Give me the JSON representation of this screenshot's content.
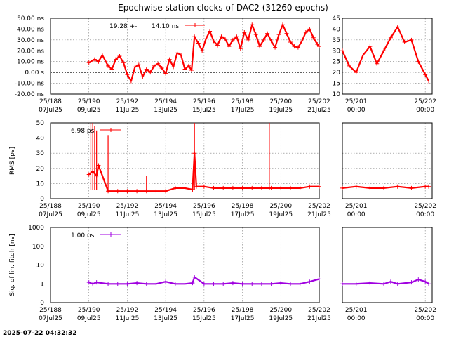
{
  "title": "Epochwise station clocks of DAC2 (31260 epochs)",
  "timestamp": "2025-07-22 04:32:32",
  "colors": {
    "clock": "#ff0000",
    "rms": "#ff0000",
    "sig": "#a000e0",
    "frame": "#000000",
    "grid": "#7f7f7f"
  },
  "chart_data": [
    {
      "type": "line",
      "id": "clock",
      "ylabel": "",
      "legend": {
        "mean": "19.28 +-",
        "sigma": "14.10 ns"
      },
      "left": {
        "x_ticks": [
          {
            "top": "25/188",
            "bottom": "07Jul25"
          },
          {
            "top": "25/190",
            "bottom": "09Jul25"
          },
          {
            "top": "25/192",
            "bottom": "11Jul25"
          },
          {
            "top": "25/194",
            "bottom": "13Jul25"
          },
          {
            "top": "25/196",
            "bottom": "15Jul25"
          },
          {
            "top": "25/198",
            "bottom": "17Jul25"
          },
          {
            "top": "25/200",
            "bottom": "19Jul25"
          },
          {
            "top": "25/202",
            "bottom": "21Jul25"
          }
        ],
        "xlim": [
          188,
          202
        ],
        "ylim": [
          -20,
          50
        ],
        "y_ticks": [
          "50.00 ns",
          "40.00 ns",
          "30.00 ns",
          "20.00 ns",
          "10.00 ns",
          "0.00  s",
          "-10.00 ns",
          "-20.00 ns"
        ],
        "y_tick_values": [
          50,
          40,
          30,
          20,
          10,
          0,
          -10,
          -20
        ],
        "series": [
          {
            "x": [
              190.0,
              190.3,
              190.5,
              190.7,
              191.0,
              191.2,
              191.4,
              191.6,
              191.8,
              192.0,
              192.2,
              192.4,
              192.6,
              192.8,
              193.0,
              193.2,
              193.4,
              193.6,
              193.8,
              194.0,
              194.2,
              194.4,
              194.6,
              194.8,
              195.0,
              195.2,
              195.35,
              195.5,
              195.7,
              195.9,
              196.1,
              196.3,
              196.5,
              196.7,
              196.9,
              197.1,
              197.3,
              197.5,
              197.7,
              197.9,
              198.1,
              198.3,
              198.5,
              198.7,
              198.9,
              199.1,
              199.3,
              199.5,
              199.7,
              199.9,
              200.1,
              200.3,
              200.5,
              200.7,
              200.9,
              201.1,
              201.3,
              201.5,
              201.7,
              201.9,
              202.0
            ],
            "y": [
              9,
              12,
              10,
              16,
              6,
              3,
              12,
              15,
              9,
              -2,
              -8,
              5,
              7,
              -4,
              3,
              0,
              6,
              8,
              4,
              -1,
              12,
              5,
              18,
              16,
              3,
              6,
              2,
              33,
              27,
              20,
              31,
              38,
              29,
              25,
              33,
              31,
              24,
              30,
              33,
              22,
              37,
              30,
              44,
              35,
              24,
              30,
              36,
              29,
              23,
              35,
              44,
              36,
              28,
              24,
              23,
              29,
              37,
              40,
              32,
              26,
              24
            ]
          }
        ]
      },
      "right": {
        "x_ticks": [
          {
            "top": "25/201",
            "bottom": "00:00"
          },
          {
            "top": "25/202",
            "bottom": "00:00"
          }
        ],
        "xlim": [
          200.8,
          202.1
        ],
        "ylim": [
          10,
          45
        ],
        "y_ticks": [
          "45",
          "40",
          "35",
          "30",
          "25",
          "20",
          "15",
          "10"
        ],
        "y_tick_values": [
          45,
          40,
          35,
          30,
          25,
          20,
          15,
          10
        ],
        "series": [
          {
            "x": [
              200.8,
              200.9,
              201.0,
              201.1,
              201.2,
              201.3,
              201.4,
              201.5,
              201.6,
              201.7,
              201.8,
              201.9,
              202.0,
              202.05
            ],
            "y": [
              30,
              23,
              20,
              28,
              32,
              24,
              30,
              36,
              41,
              34,
              35,
              25,
              19,
              16
            ]
          }
        ]
      }
    },
    {
      "type": "line",
      "id": "rms",
      "ylabel": "RMS [ps]",
      "legend": {
        "value": "6.98 ps"
      },
      "left": {
        "x_ticks": [
          {
            "top": "25/188",
            "bottom": "07Jul25"
          },
          {
            "top": "25/190",
            "bottom": "09Jul25"
          },
          {
            "top": "25/192",
            "bottom": "11Jul25"
          },
          {
            "top": "25/194",
            "bottom": "13Jul25"
          },
          {
            "top": "25/196",
            "bottom": "15Jul25"
          },
          {
            "top": "25/198",
            "bottom": "17Jul25"
          },
          {
            "top": "25/200",
            "bottom": "19Jul25"
          },
          {
            "top": "25/202",
            "bottom": "21Jul25"
          }
        ],
        "xlim": [
          188,
          202
        ],
        "ylim": [
          0,
          50
        ],
        "y_ticks": [
          "50",
          "40",
          "30",
          "20",
          "10",
          "0"
        ],
        "y_tick_values": [
          50,
          40,
          30,
          20,
          10,
          0
        ],
        "series": [
          {
            "x": [
              190.0,
              190.2,
              190.4,
              190.5,
              191.0,
              191.5,
              192.0,
              192.5,
              193.0,
              193.5,
              194.0,
              194.5,
              195.0,
              195.4,
              195.5,
              195.6,
              196.0,
              196.5,
              197.0,
              197.5,
              198.0,
              198.5,
              199.0,
              199.5,
              200.0,
              200.5,
              201.0,
              201.5,
              202.0
            ],
            "y": [
              16,
              18,
              15,
              22,
              5,
              5,
              5,
              5,
              5,
              5,
              5,
              7,
              7,
              6,
              30,
              8,
              8,
              7,
              7,
              7,
              7,
              7,
              7,
              7,
              7,
              7,
              7,
              8,
              8
            ]
          }
        ],
        "spikes": [
          {
            "x": 190.1,
            "y": 50
          },
          {
            "x": 190.2,
            "y": 50
          },
          {
            "x": 190.3,
            "y": 48
          },
          {
            "x": 190.4,
            "y": 45
          },
          {
            "x": 191.0,
            "y": 42
          },
          {
            "x": 193.0,
            "y": 15
          },
          {
            "x": 195.5,
            "y": 50
          },
          {
            "x": 199.4,
            "y": 50
          }
        ]
      },
      "right": {
        "x_ticks": [
          {
            "top": "25/201",
            "bottom": "00:00"
          },
          {
            "top": "25/202",
            "bottom": "00:00"
          }
        ],
        "xlim": [
          200.8,
          202.1
        ],
        "ylim": [
          0,
          50
        ],
        "series": [
          {
            "x": [
              200.8,
              201.0,
              201.2,
              201.4,
              201.6,
              201.8,
              202.0,
              202.05
            ],
            "y": [
              7,
              8,
              7,
              7,
              8,
              7,
              8,
              8
            ]
          }
        ]
      }
    },
    {
      "type": "line",
      "id": "sig",
      "ylabel": "Sig. of lin. fitdh [ns]",
      "legend": {
        "value": "1.00 ns"
      },
      "log_scale": true,
      "left": {
        "x_ticks": [
          {
            "top": "25/188",
            "bottom": "07Jul25"
          },
          {
            "top": "25/190",
            "bottom": "09Jul25"
          },
          {
            "top": "25/192",
            "bottom": "11Jul25"
          },
          {
            "top": "25/194",
            "bottom": "13Jul25"
          },
          {
            "top": "25/196",
            "bottom": "15Jul25"
          },
          {
            "top": "25/198",
            "bottom": "17Jul25"
          },
          {
            "top": "25/200",
            "bottom": "19Jul25"
          },
          {
            "top": "25/202",
            "bottom": "21Jul25"
          }
        ],
        "xlim": [
          188,
          202
        ],
        "ylim": [
          0.1,
          1000
        ],
        "y_ticks": [
          "1000",
          "100",
          "10",
          "1",
          "0"
        ],
        "y_tick_values": [
          1000,
          100,
          10,
          1,
          0.1
        ],
        "series": [
          {
            "x": [
              190.0,
              190.2,
              190.4,
              191.0,
              191.5,
              192.0,
              192.5,
              193.0,
              193.5,
              194.0,
              194.5,
              195.0,
              195.4,
              195.5,
              196.0,
              196.5,
              197.0,
              197.5,
              198.0,
              198.5,
              199.0,
              199.5,
              200.0,
              200.5,
              201.0,
              201.5,
              202.0
            ],
            "y": [
              1.2,
              1.0,
              1.2,
              1.0,
              1.0,
              1.0,
              1.1,
              1.0,
              1.0,
              1.3,
              1.0,
              1.0,
              1.1,
              2.3,
              1.0,
              1.0,
              1.0,
              1.1,
              1.0,
              1.0,
              1.0,
              1.0,
              1.1,
              1.0,
              1.0,
              1.3,
              1.8
            ]
          }
        ]
      },
      "right": {
        "x_ticks": [
          {
            "top": "25/201",
            "bottom": "00:00"
          },
          {
            "top": "25/202",
            "bottom": "00:00"
          }
        ],
        "xlim": [
          200.8,
          202.1
        ],
        "ylim": [
          0.1,
          1000
        ],
        "series": [
          {
            "x": [
              200.8,
              201.0,
              201.2,
              201.4,
              201.5,
              201.6,
              201.8,
              201.9,
              202.0,
              202.05
            ],
            "y": [
              1.0,
              1.0,
              1.1,
              1.0,
              1.3,
              1.0,
              1.2,
              1.7,
              1.3,
              1.0
            ]
          }
        ]
      }
    }
  ]
}
